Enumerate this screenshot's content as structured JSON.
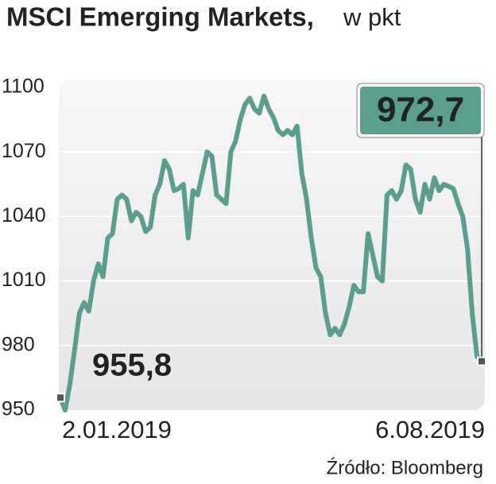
{
  "chart_data": {
    "type": "line",
    "title": "MSCI Emerging Markets,",
    "subtitle": "w pkt",
    "source": "Źródło: Bloomberg",
    "categories": [
      "2.01.2019",
      null,
      null,
      null,
      null,
      null,
      null,
      null,
      null,
      null,
      null,
      null,
      null,
      null,
      null,
      null,
      null,
      null,
      null,
      null,
      null,
      null,
      null,
      null,
      null,
      null,
      null,
      null,
      null,
      null,
      null,
      null,
      null,
      null,
      null,
      null,
      null,
      null,
      null,
      null,
      null,
      null,
      null,
      null,
      null,
      null,
      null,
      null,
      null,
      null,
      null,
      null,
      null,
      null,
      null,
      null,
      null,
      null,
      null,
      null,
      null,
      null,
      null,
      null,
      null,
      null,
      null,
      null,
      null,
      null,
      null,
      null,
      null,
      null,
      null,
      null,
      null,
      null,
      null,
      null,
      null,
      null,
      null,
      null,
      null,
      null,
      null,
      null,
      null,
      "6.08.2019"
    ],
    "series": [
      {
        "name": "MSCI Emerging Markets",
        "color": "#5a9e8e",
        "values": [
          955.8,
          950,
          962,
          978,
          995,
          1000,
          996,
          1010,
          1018,
          1012,
          1030,
          1032,
          1048,
          1050,
          1048,
          1038,
          1042,
          1040,
          1033,
          1035,
          1050,
          1055,
          1066,
          1062,
          1052,
          1053,
          1055,
          1030,
          1052,
          1050,
          1060,
          1070,
          1068,
          1050,
          1048,
          1046,
          1070,
          1075,
          1085,
          1092,
          1095,
          1090,
          1088,
          1096,
          1090,
          1086,
          1080,
          1078,
          1080,
          1078,
          1082,
          1060,
          1048,
          1030,
          1016,
          1012,
          995,
          985,
          988,
          985,
          990,
          998,
          1008,
          1005,
          1005,
          1032,
          1022,
          1012,
          1010,
          1050,
          1052,
          1048,
          1052,
          1064,
          1062,
          1048,
          1042,
          1055,
          1048,
          1058,
          1052,
          1055,
          1054,
          1053,
          1046,
          1040,
          1025,
          995,
          975,
          972.7
        ],
        "value_labels": [
          "955,8",
          null,
          null,
          null,
          null,
          null,
          null,
          null,
          null,
          null,
          null,
          null,
          null,
          null,
          null,
          null,
          null,
          null,
          null,
          null,
          null,
          null,
          null,
          null,
          null,
          null,
          null,
          null,
          null,
          null,
          null,
          null,
          null,
          null,
          null,
          null,
          null,
          null,
          null,
          null,
          null,
          null,
          null,
          null,
          null,
          null,
          null,
          null,
          null,
          null,
          null,
          null,
          null,
          null,
          null,
          null,
          null,
          null,
          null,
          null,
          null,
          null,
          null,
          null,
          null,
          null,
          null,
          null,
          null,
          null,
          null,
          null,
          null,
          null,
          null,
          null,
          null,
          null,
          null,
          null,
          null,
          null,
          null,
          null,
          null,
          null,
          null,
          null,
          null,
          "972,7"
        ]
      }
    ],
    "ylim": [
      950,
      1100
    ],
    "yticks": [
      950,
      980,
      1010,
      1040,
      1070,
      1100
    ],
    "grid": true
  }
}
